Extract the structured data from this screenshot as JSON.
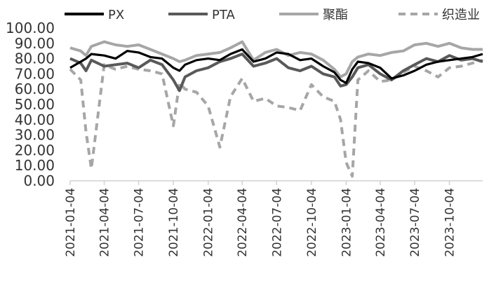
{
  "chart_data": {
    "type": "line",
    "title": "",
    "xlabel": "",
    "ylabel": "",
    "ylim": [
      0,
      100
    ],
    "y_ticks": [
      "0.00",
      "10.00",
      "20.00",
      "30.00",
      "40.00",
      "50.00",
      "60.00",
      "70.00",
      "80.00",
      "90.00",
      "100.00"
    ],
    "x_ticks": [
      "2021-01-04",
      "2021-04-04",
      "2021-07-04",
      "2021-10-04",
      "2022-01-04",
      "2022-04-04",
      "2022-07-04",
      "2022-10-04",
      "2023-01-04",
      "2023-04-04",
      "2023-07-04",
      "2023-10-04"
    ],
    "x_range": [
      "2021-01-04",
      "2023-12-31"
    ],
    "grid": false,
    "legend_position": "top",
    "x": [
      "2021-01-04",
      "2021-02-01",
      "2021-02-15",
      "2021-03-01",
      "2021-04-04",
      "2021-05-04",
      "2021-06-04",
      "2021-07-04",
      "2021-08-04",
      "2021-09-04",
      "2021-10-04",
      "2021-10-20",
      "2021-11-04",
      "2021-12-04",
      "2022-01-04",
      "2022-02-04",
      "2022-03-04",
      "2022-04-04",
      "2022-05-04",
      "2022-06-04",
      "2022-07-04",
      "2022-08-04",
      "2022-09-04",
      "2022-10-04",
      "2022-11-04",
      "2022-12-04",
      "2022-12-20",
      "2023-01-04",
      "2023-01-20",
      "2023-02-04",
      "2023-03-04",
      "2023-04-04",
      "2023-05-04",
      "2023-06-04",
      "2023-07-04",
      "2023-08-04",
      "2023-09-04",
      "2023-10-04",
      "2023-11-04",
      "2023-12-04",
      "2023-12-31"
    ],
    "series": [
      {
        "name": "PX",
        "color": "#000000",
        "dash": "solid",
        "values": [
          74,
          78,
          80,
          83,
          82,
          80,
          85,
          84,
          81,
          80,
          74,
          72,
          76,
          79,
          80,
          79,
          83,
          86,
          78,
          80,
          84,
          83,
          79,
          80,
          75,
          71,
          66,
          64,
          73,
          78,
          77,
          74,
          67,
          69,
          72,
          76,
          78,
          79,
          80,
          81,
          83
        ]
      },
      {
        "name": "PTA",
        "color": "#595959",
        "dash": "solid",
        "values": [
          80,
          77,
          72,
          79,
          75,
          76,
          77,
          74,
          79,
          76,
          66,
          59,
          68,
          72,
          74,
          78,
          80,
          83,
          75,
          77,
          80,
          74,
          72,
          75,
          70,
          68,
          62,
          63,
          68,
          74,
          76,
          70,
          66,
          72,
          76,
          80,
          78,
          82,
          79,
          80,
          78
        ]
      },
      {
        "name": "聚酯",
        "color": "#a6a6a6",
        "dash": "solid",
        "values": [
          87,
          85,
          82,
          88,
          91,
          89,
          88,
          89,
          86,
          83,
          80,
          78,
          79,
          82,
          83,
          84,
          87,
          91,
          79,
          84,
          86,
          82,
          84,
          83,
          79,
          73,
          68,
          70,
          78,
          81,
          83,
          82,
          84,
          85,
          89,
          90,
          88,
          90,
          87,
          86,
          86
        ]
      },
      {
        "name": "织造业",
        "color": "#a6a6a6",
        "dash": "dashed",
        "values": [
          73,
          66,
          32,
          8,
          76,
          73,
          75,
          73,
          72,
          70,
          36,
          64,
          60,
          58,
          49,
          22,
          55,
          67,
          52,
          54,
          49,
          48,
          46,
          63,
          55,
          52,
          40,
          12,
          3,
          66,
          72,
          65,
          66,
          71,
          75,
          72,
          68,
          74,
          75,
          77,
          79
        ]
      }
    ]
  }
}
